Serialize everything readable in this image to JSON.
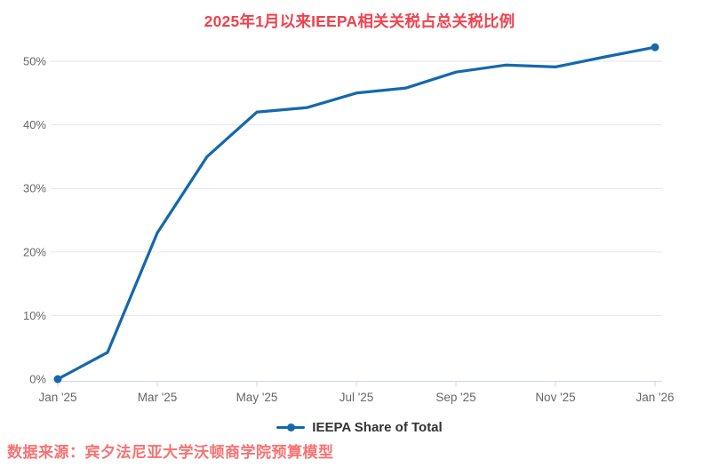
{
  "title": {
    "text": "2025年1月以来IEEPA相关关税占总关税比例"
  },
  "source": {
    "text": "数据来源：宾夕法尼亚大学沃顿商学院预算模型"
  },
  "legend": {
    "label": "IEEPA Share of Total"
  },
  "colors": {
    "series": "#1568ac",
    "title": "#f0424d",
    "source": "#f87272",
    "axis_text": "#666666",
    "grid": "#e6e6e6",
    "axis_line": "#ccd6eb",
    "legend_text": "#333333"
  },
  "chart_data": {
    "type": "line",
    "title": "2025年1月以来IEEPA相关关税占总关税比例",
    "x": [
      "Jan '25",
      "Feb '25",
      "Mar '25",
      "Apr '25",
      "May '25",
      "Jun '25",
      "Jul '25",
      "Aug '25",
      "Sep '25",
      "Oct '25",
      "Nov '25",
      "Dec '25",
      "Jan '26"
    ],
    "series": [
      {
        "name": "IEEPA Share of Total",
        "values": [
          0,
          4.2,
          23,
          35,
          42,
          42.7,
          45,
          45.8,
          48.3,
          49.4,
          49.1,
          50.7,
          52.2
        ]
      }
    ],
    "unit": "%",
    "ylim": [
      0,
      55
    ],
    "yticks": [
      0,
      10,
      20,
      30,
      40,
      50
    ],
    "xtick_labels_shown": [
      "Jan '25",
      "Mar '25",
      "May '25",
      "Jul '25",
      "Sep '25",
      "Nov '25",
      "Jan '26"
    ],
    "grid": true,
    "legend_position": "bottom",
    "markers": "first-and-last"
  }
}
